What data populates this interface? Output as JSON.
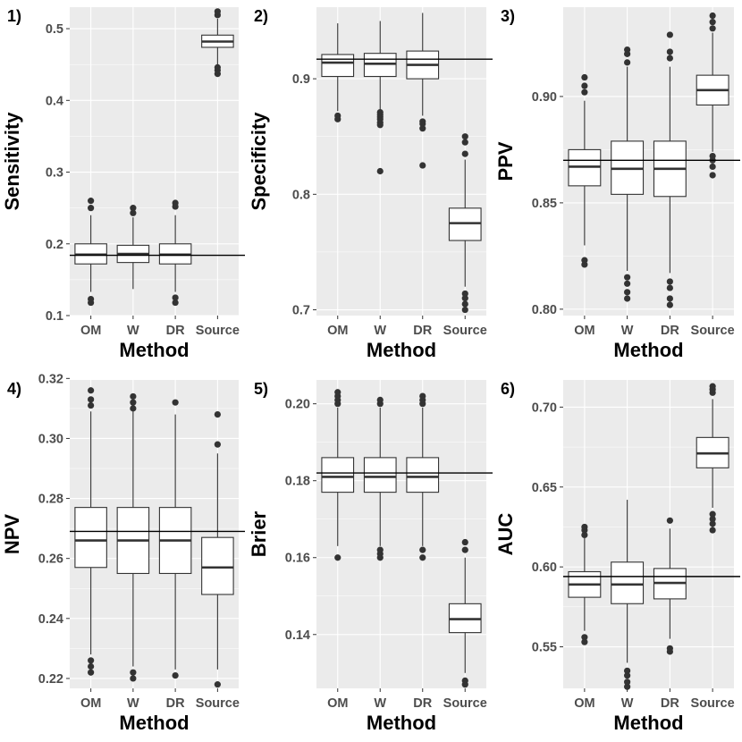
{
  "figure": {
    "x_axis_title": "Method"
  },
  "chart_data": [
    {
      "type": "boxplot",
      "tag": "1)",
      "ylabel": "Sensitivity",
      "xlabel": "Method",
      "categories": [
        "OM",
        "W",
        "DR",
        "Source"
      ],
      "ylim": [
        0.1,
        0.53
      ],
      "yticks": [
        0.1,
        0.2,
        0.3,
        0.4,
        0.5
      ],
      "tick_format": "1",
      "reference": 0.184,
      "boxes": [
        {
          "q1": 0.172,
          "median": 0.185,
          "q3": 0.2,
          "low": 0.133,
          "high": 0.24,
          "outliers": [
            0.118,
            0.123,
            0.25,
            0.26
          ]
        },
        {
          "q1": 0.174,
          "median": 0.186,
          "q3": 0.198,
          "low": 0.137,
          "high": 0.237,
          "outliers": [
            0.243,
            0.25
          ]
        },
        {
          "q1": 0.172,
          "median": 0.185,
          "q3": 0.2,
          "low": 0.133,
          "high": 0.24,
          "outliers": [
            0.118,
            0.125,
            0.252,
            0.257
          ]
        },
        {
          "q1": 0.474,
          "median": 0.482,
          "q3": 0.491,
          "low": 0.45,
          "high": 0.514,
          "outliers": [
            0.437,
            0.442,
            0.446,
            0.519,
            0.524
          ]
        }
      ]
    },
    {
      "type": "boxplot",
      "tag": "2)",
      "ylabel": "Specificity",
      "xlabel": "Method",
      "categories": [
        "OM",
        "W",
        "DR",
        "Source"
      ],
      "ylim": [
        0.695,
        0.962
      ],
      "yticks": [
        0.7,
        0.8,
        0.9
      ],
      "tick_format": "1",
      "reference": 0.917,
      "boxes": [
        {
          "q1": 0.902,
          "median": 0.914,
          "q3": 0.921,
          "low": 0.872,
          "high": 0.948,
          "outliers": [
            0.865,
            0.868
          ]
        },
        {
          "q1": 0.902,
          "median": 0.913,
          "q3": 0.922,
          "low": 0.872,
          "high": 0.95,
          "outliers": [
            0.82,
            0.86,
            0.862,
            0.865,
            0.867,
            0.869,
            0.871
          ]
        },
        {
          "q1": 0.9,
          "median": 0.912,
          "q3": 0.924,
          "low": 0.868,
          "high": 0.957,
          "outliers": [
            0.825,
            0.857,
            0.861,
            0.863
          ]
        },
        {
          "q1": 0.76,
          "median": 0.775,
          "q3": 0.788,
          "low": 0.72,
          "high": 0.83,
          "outliers": [
            0.7,
            0.705,
            0.71,
            0.714,
            0.835,
            0.845,
            0.85
          ]
        }
      ]
    },
    {
      "type": "boxplot",
      "tag": "3)",
      "ylabel": "PPV",
      "xlabel": "Method",
      "categories": [
        "OM",
        "W",
        "DR",
        "Source"
      ],
      "ylim": [
        0.797,
        0.942
      ],
      "yticks": [
        0.8,
        0.85,
        0.9
      ],
      "tick_format": "2",
      "reference": 0.87,
      "boxes": [
        {
          "q1": 0.858,
          "median": 0.867,
          "q3": 0.875,
          "low": 0.83,
          "high": 0.898,
          "outliers": [
            0.821,
            0.823,
            0.902,
            0.905,
            0.909
          ]
        },
        {
          "q1": 0.854,
          "median": 0.866,
          "q3": 0.879,
          "low": 0.818,
          "high": 0.914,
          "outliers": [
            0.805,
            0.808,
            0.812,
            0.815,
            0.916,
            0.92,
            0.922
          ]
        },
        {
          "q1": 0.853,
          "median": 0.866,
          "q3": 0.879,
          "low": 0.817,
          "high": 0.914,
          "outliers": [
            0.802,
            0.805,
            0.81,
            0.813,
            0.918,
            0.921,
            0.929
          ]
        },
        {
          "q1": 0.896,
          "median": 0.903,
          "q3": 0.91,
          "low": 0.874,
          "high": 0.93,
          "outliers": [
            0.863,
            0.867,
            0.87,
            0.872,
            0.932,
            0.935,
            0.938
          ]
        }
      ]
    },
    {
      "type": "boxplot",
      "tag": "4)",
      "ylabel": "NPV",
      "xlabel": "Method",
      "categories": [
        "OM",
        "W",
        "DR",
        "Source"
      ],
      "ylim": [
        0.2167,
        0.3195
      ],
      "yticks": [
        0.22,
        0.24,
        0.26,
        0.28,
        0.3,
        0.32
      ],
      "tick_format": "2",
      "reference": 0.269,
      "boxes": [
        {
          "q1": 0.257,
          "median": 0.266,
          "q3": 0.277,
          "low": 0.228,
          "high": 0.309,
          "outliers": [
            0.222,
            0.224,
            0.226,
            0.311,
            0.313,
            0.316
          ]
        },
        {
          "q1": 0.255,
          "median": 0.266,
          "q3": 0.277,
          "low": 0.224,
          "high": 0.309,
          "outliers": [
            0.22,
            0.222,
            0.31,
            0.312,
            0.314
          ]
        },
        {
          "q1": 0.255,
          "median": 0.266,
          "q3": 0.277,
          "low": 0.223,
          "high": 0.308,
          "outliers": [
            0.221,
            0.312
          ]
        },
        {
          "q1": 0.248,
          "median": 0.257,
          "q3": 0.267,
          "low": 0.223,
          "high": 0.295,
          "outliers": [
            0.218,
            0.298,
            0.308
          ]
        }
      ]
    },
    {
      "type": "boxplot",
      "tag": "5)",
      "ylabel": "Brier",
      "xlabel": "Method",
      "categories": [
        "OM",
        "W",
        "DR",
        "Source"
      ],
      "ylim": [
        0.126,
        0.2062
      ],
      "yticks": [
        0.14,
        0.16,
        0.18,
        0.2
      ],
      "tick_format": "2",
      "reference": 0.182,
      "boxes": [
        {
          "q1": 0.177,
          "median": 0.181,
          "q3": 0.186,
          "low": 0.163,
          "high": 0.199,
          "outliers": [
            0.16,
            0.2,
            0.201,
            0.202,
            0.203
          ]
        },
        {
          "q1": 0.177,
          "median": 0.181,
          "q3": 0.186,
          "low": 0.163,
          "high": 0.199,
          "outliers": [
            0.16,
            0.161,
            0.162,
            0.2,
            0.201
          ]
        },
        {
          "q1": 0.177,
          "median": 0.181,
          "q3": 0.186,
          "low": 0.163,
          "high": 0.199,
          "outliers": [
            0.16,
            0.162,
            0.2,
            0.201,
            0.202
          ]
        },
        {
          "q1": 0.1405,
          "median": 0.144,
          "q3": 0.148,
          "low": 0.13,
          "high": 0.16,
          "outliers": [
            0.127,
            0.128,
            0.162,
            0.164
          ]
        }
      ]
    },
    {
      "type": "boxplot",
      "tag": "6)",
      "ylabel": "AUC",
      "xlabel": "Method",
      "categories": [
        "OM",
        "W",
        "DR",
        "Source"
      ],
      "ylim": [
        0.524,
        0.717
      ],
      "yticks": [
        0.55,
        0.6,
        0.65,
        0.7
      ],
      "tick_format": "2",
      "reference": 0.594,
      "boxes": [
        {
          "q1": 0.581,
          "median": 0.589,
          "q3": 0.597,
          "low": 0.56,
          "high": 0.618,
          "outliers": [
            0.553,
            0.556,
            0.62,
            0.623,
            0.625
          ]
        },
        {
          "q1": 0.577,
          "median": 0.589,
          "q3": 0.603,
          "low": 0.54,
          "high": 0.642,
          "outliers": [
            0.525,
            0.528,
            0.532,
            0.535
          ]
        },
        {
          "q1": 0.58,
          "median": 0.59,
          "q3": 0.599,
          "low": 0.555,
          "high": 0.624,
          "outliers": [
            0.547,
            0.549,
            0.629
          ]
        },
        {
          "q1": 0.662,
          "median": 0.671,
          "q3": 0.681,
          "low": 0.637,
          "high": 0.705,
          "outliers": [
            0.623,
            0.627,
            0.63,
            0.633,
            0.709,
            0.711,
            0.713
          ]
        }
      ]
    }
  ]
}
